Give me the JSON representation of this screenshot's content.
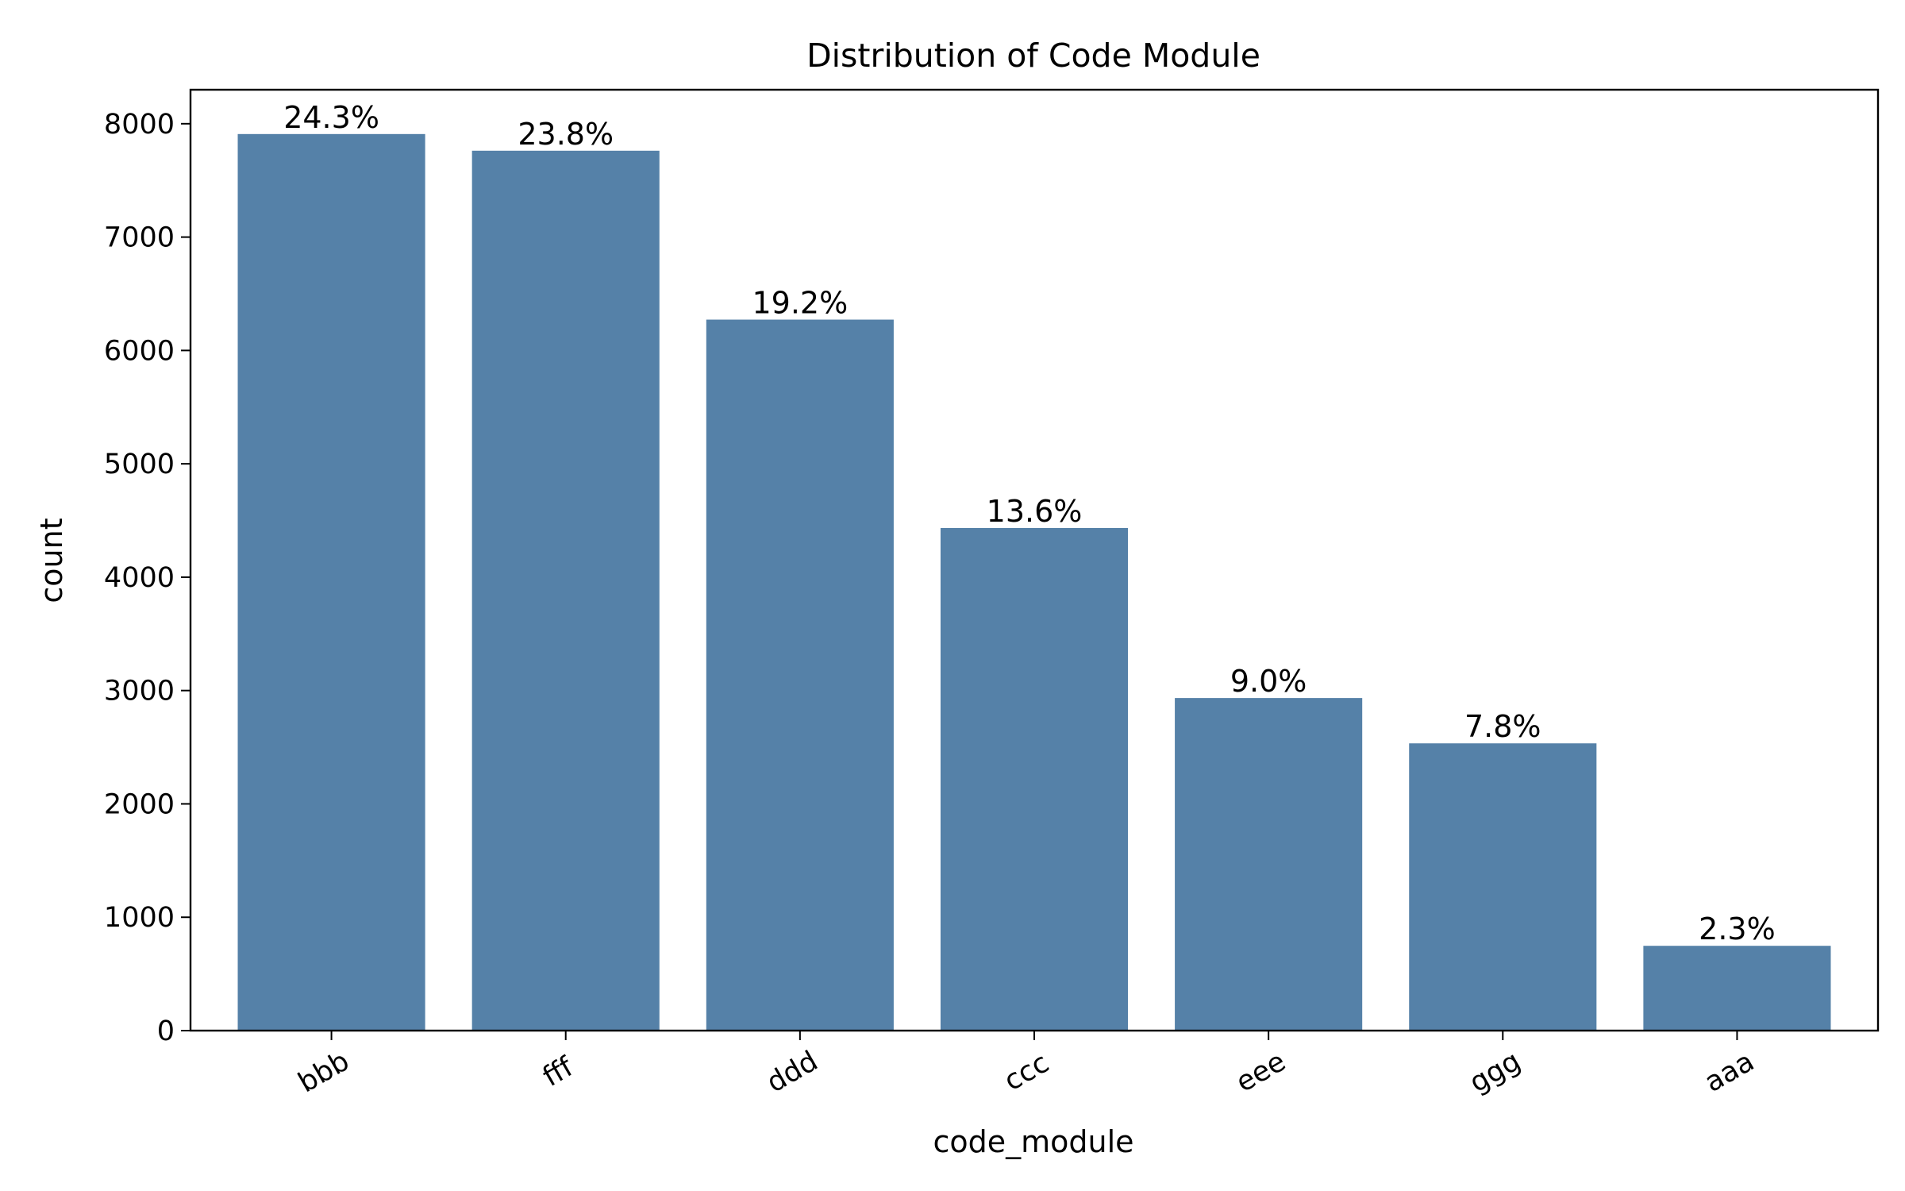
{
  "chart_data": {
    "type": "bar",
    "title": "Distribution of Code Module",
    "xlabel": "code_module",
    "ylabel": "count",
    "categories": [
      "bbb",
      "fff",
      "ddd",
      "ccc",
      "eee",
      "ggg",
      "aaa"
    ],
    "values": [
      7909,
      7762,
      6272,
      4434,
      2934,
      2534,
      748
    ],
    "data_labels": [
      "24.3%",
      "23.8%",
      "19.2%",
      "13.6%",
      "9.0%",
      "7.8%",
      "2.3%"
    ],
    "ylim": [
      0,
      8300
    ],
    "yticks": [
      0,
      1000,
      2000,
      3000,
      4000,
      5000,
      6000,
      7000,
      8000
    ],
    "bar_color": "#5581a8",
    "grid": false,
    "legend": "none"
  }
}
